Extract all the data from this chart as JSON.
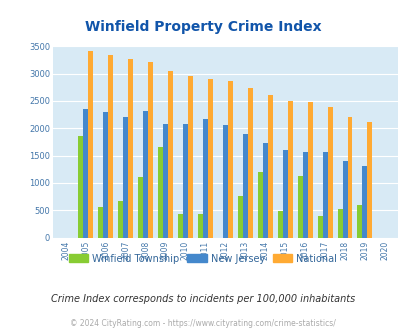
{
  "title": "Winfield Property Crime Index",
  "years": [
    2004,
    2005,
    2006,
    2007,
    2008,
    2009,
    2010,
    2011,
    2012,
    2013,
    2014,
    2015,
    2016,
    2017,
    2018,
    2019,
    2020
  ],
  "winfield": [
    0,
    1850,
    560,
    670,
    1100,
    1650,
    430,
    430,
    0,
    760,
    1200,
    490,
    1130,
    400,
    530,
    590,
    0
  ],
  "new_jersey": [
    0,
    2360,
    2300,
    2200,
    2310,
    2070,
    2080,
    2160,
    2050,
    1900,
    1730,
    1610,
    1560,
    1560,
    1400,
    1310,
    0
  ],
  "national": [
    0,
    3420,
    3340,
    3270,
    3220,
    3050,
    2950,
    2900,
    2860,
    2730,
    2600,
    2500,
    2480,
    2380,
    2200,
    2110,
    0
  ],
  "winfield_color": "#88cc33",
  "nj_color": "#4488cc",
  "national_color": "#ffaa33",
  "bg_color": "#d8eaf5",
  "ylim": [
    0,
    3500
  ],
  "title_color": "#1155aa",
  "subtitle": "Crime Index corresponds to incidents per 100,000 inhabitants",
  "footer": "© 2024 CityRating.com - https://www.cityrating.com/crime-statistics/",
  "bar_width": 0.25
}
